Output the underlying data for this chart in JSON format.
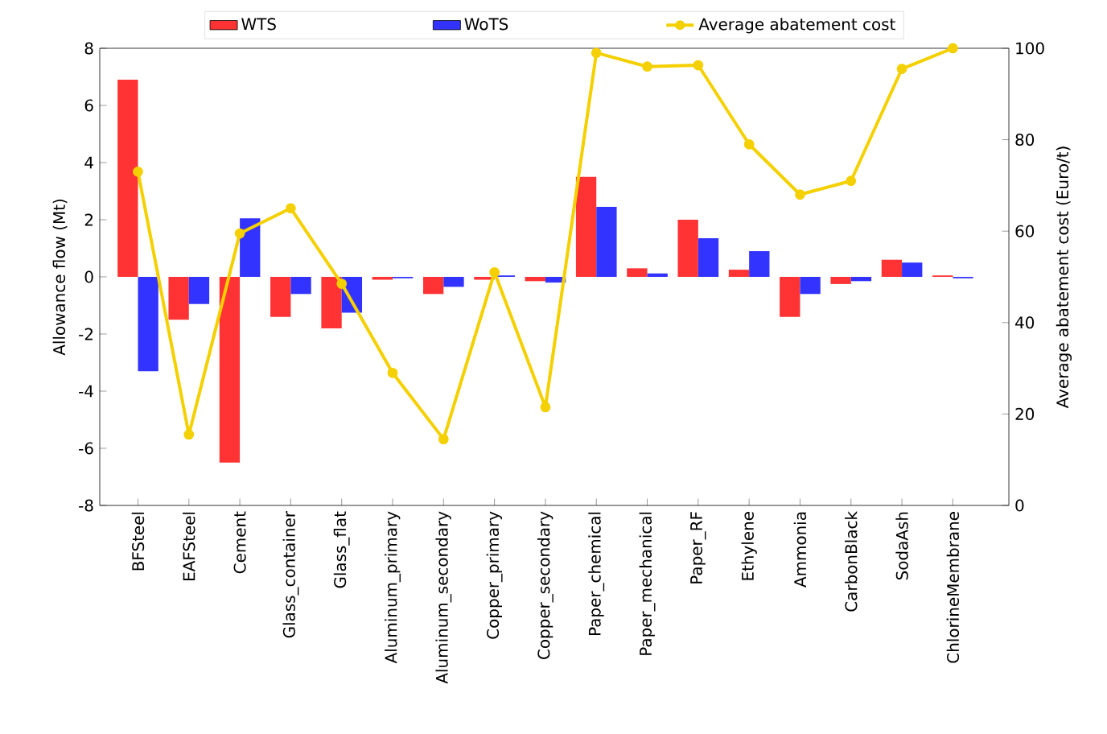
{
  "chart_data": {
    "type": "bar",
    "ylabel": "Allowance flow (Mt)",
    "y2label": "Average abatement cost (Euro/t)",
    "categories": [
      "BFSteel",
      "EAFSteel",
      "Cement",
      "Glass_container",
      "Glass_flat",
      "Aluminum_primary",
      "Aluminum_secondary",
      "Copper_primary",
      "Copper_secondary",
      "Paper_chemical",
      "Paper_mechanical",
      "Paper_RF",
      "Ethylene",
      "Ammonia",
      "CarbonBlack",
      "SodaAsh",
      "ChlorineMembrane"
    ],
    "series": [
      {
        "name": "WTS",
        "color": "#ff3333",
        "values": [
          6.9,
          -1.5,
          -6.5,
          -1.4,
          -1.8,
          -0.1,
          -0.6,
          -0.1,
          -0.15,
          3.5,
          0.3,
          2.0,
          0.25,
          -1.4,
          -0.25,
          0.6,
          0.05
        ]
      },
      {
        "name": "WoTS",
        "color": "#3333ff",
        "values": [
          -3.3,
          -0.95,
          2.05,
          -0.6,
          -1.25,
          -0.05,
          -0.35,
          0.05,
          -0.2,
          2.45,
          0.12,
          1.35,
          0.9,
          -0.6,
          -0.15,
          0.5,
          -0.05
        ]
      },
      {
        "name": "Average abatement cost",
        "type": "line",
        "axis": "y2",
        "color": "#f5d000",
        "marker": "circle",
        "values": [
          73,
          15.5,
          59.5,
          65,
          48.5,
          29,
          14.5,
          51,
          21.5,
          99,
          96,
          96.3,
          79,
          68,
          71,
          95.5,
          100
        ]
      }
    ],
    "ylim": [
      -8,
      8
    ],
    "yticks": [
      -8,
      -6,
      -4,
      -2,
      0,
      2,
      4,
      6,
      8
    ],
    "y2lim": [
      0,
      100
    ],
    "y2ticks": [
      0,
      20,
      40,
      60,
      80,
      100
    ],
    "legend": "top",
    "grid": false
  }
}
